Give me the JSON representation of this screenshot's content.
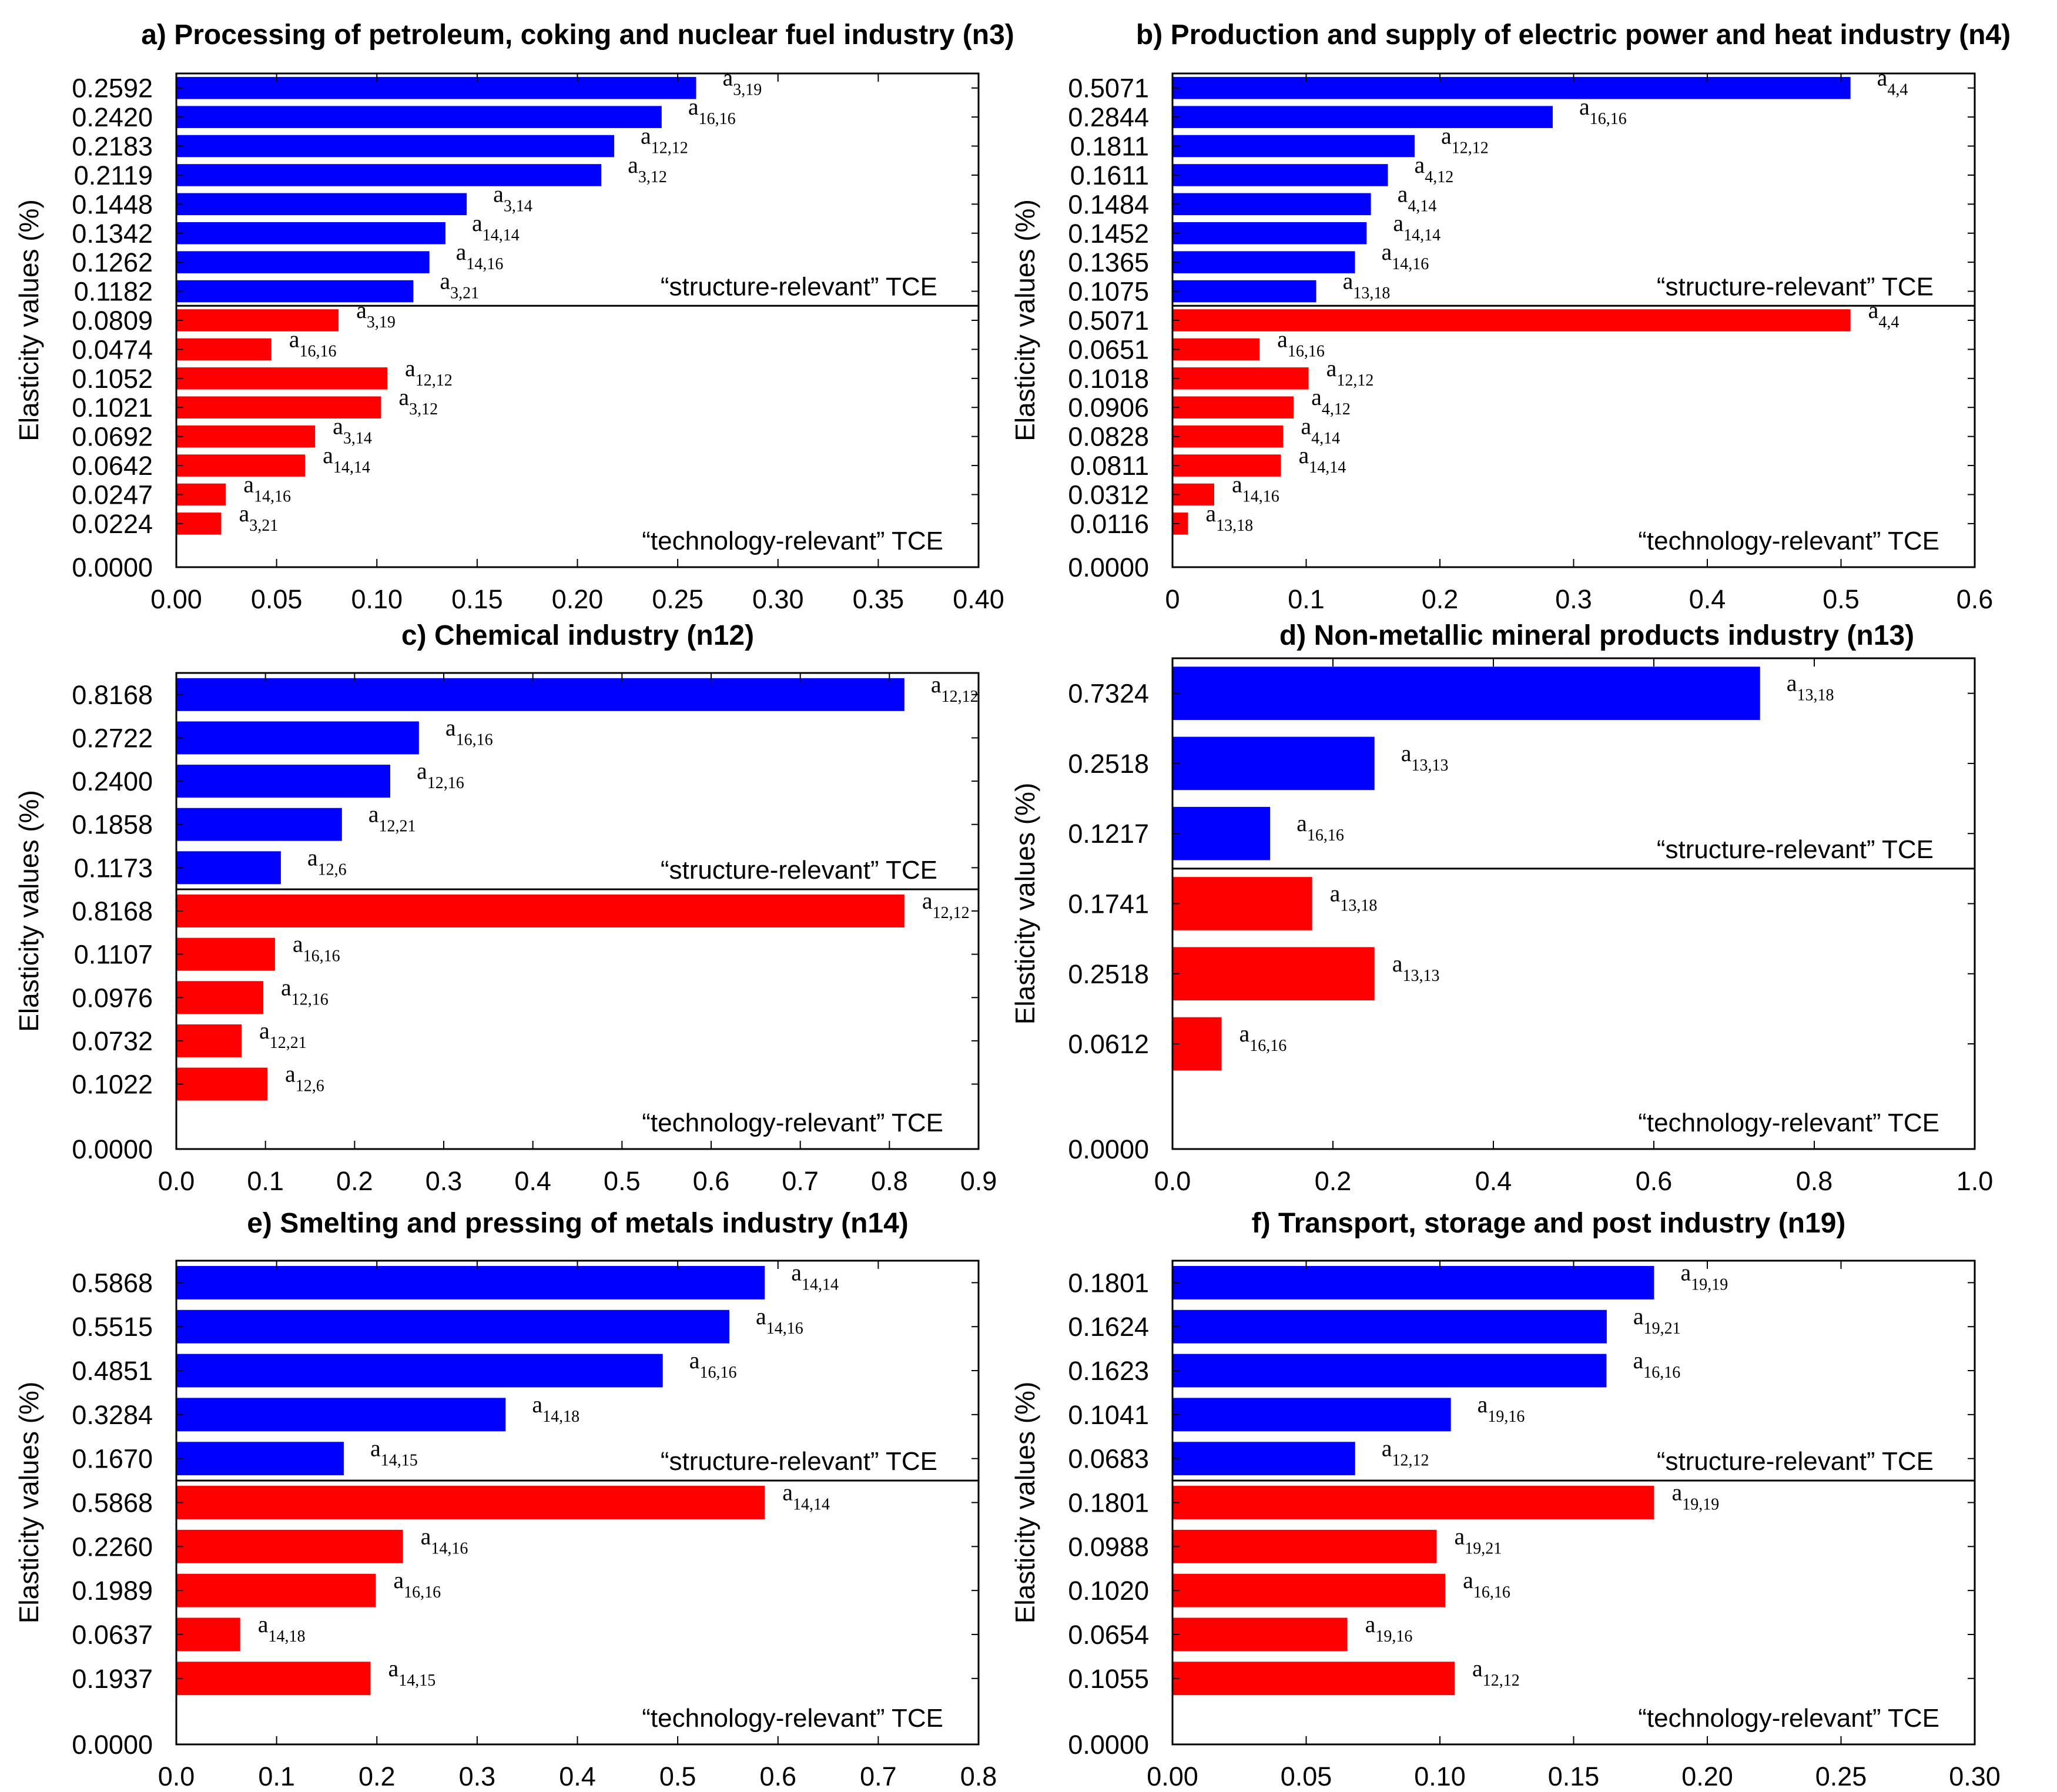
{
  "figure": {
    "ylabel": "Elasticity values (%)",
    "structure_label": "“structure-relevant” TCE",
    "technology_label": "“technology-relevant” TCE",
    "colors": {
      "structure": "#0000FF",
      "technology": "#FF0000",
      "axis": "#000000"
    }
  },
  "chart_data": [
    {
      "type": "bar",
      "orientation": "horizontal",
      "title": "a) Processing of petroleum, coking and nuclear fuel industry (n3)",
      "ylabel": "Elasticity values (%)",
      "xlim": [
        0,
        0.4
      ],
      "xticks": [
        "0.00",
        "0.05",
        "0.10",
        "0.15",
        "0.20",
        "0.25",
        "0.30",
        "0.35",
        "0.40"
      ],
      "structure": {
        "label": "“structure-relevant” TCE",
        "values": [
          0.2592,
          0.242,
          0.2183,
          0.2119,
          0.1448,
          0.1342,
          0.1262,
          0.1182
        ],
        "tick_labels": [
          "0.2592",
          "0.2420",
          "0.2183",
          "0.2119",
          "0.1448",
          "0.1342",
          "0.1262",
          "0.1182"
        ],
        "coef": [
          "3,19",
          "16,16",
          "12,12",
          "3,12",
          "3,14",
          "14,14",
          "14,16",
          "3,21"
        ]
      },
      "technology": {
        "label": "“technology-relevant” TCE",
        "values": [
          0.0809,
          0.0474,
          0.1052,
          0.1021,
          0.0692,
          0.0642,
          0.0247,
          0.0224
        ],
        "tick_labels": [
          "0.0809",
          "0.0474",
          "0.1052",
          "0.1021",
          "0.0692",
          "0.0642",
          "0.0247",
          "0.0224"
        ],
        "coef": [
          "3,19",
          "16,16",
          "12,12",
          "3,12",
          "3,14",
          "14,14",
          "14,16",
          "3,21"
        ]
      },
      "zero_label": "0.0000"
    },
    {
      "type": "bar",
      "orientation": "horizontal",
      "title": "b) Production and supply of electric power and heat industry (n4)",
      "ylabel": "Elasticity values (%)",
      "xlim": [
        0,
        0.6
      ],
      "xticks": [
        "0",
        "0.1",
        "0.2",
        "0.3",
        "0.4",
        "0.5",
        "0.6"
      ],
      "structure": {
        "label": "“structure-relevant” TCE",
        "values": [
          0.5071,
          0.2844,
          0.1811,
          0.1611,
          0.1484,
          0.1452,
          0.1365,
          0.1075
        ],
        "tick_labels": [
          "0.5071",
          "0.2844",
          "0.1811",
          "0.1611",
          "0.1484",
          "0.1452",
          "0.1365",
          "0.1075"
        ],
        "coef": [
          "4,4",
          "16,16",
          "12,12",
          "4,12",
          "4,14",
          "14,14",
          "14,16",
          "13,18"
        ]
      },
      "technology": {
        "label": "“technology-relevant” TCE",
        "values": [
          0.5071,
          0.0651,
          0.1018,
          0.0906,
          0.0828,
          0.0811,
          0.0312,
          0.0116
        ],
        "tick_labels": [
          "0.5071",
          "0.0651",
          "0.1018",
          "0.0906",
          "0.0828",
          "0.0811",
          "0.0312",
          "0.0116"
        ],
        "coef": [
          "4,4",
          "16,16",
          "12,12",
          "4,12",
          "4,14",
          "14,14",
          "14,16",
          "13,18"
        ]
      },
      "zero_label": "0.0000"
    },
    {
      "type": "bar",
      "orientation": "horizontal",
      "title": "c) Chemical industry (n12)",
      "ylabel": "Elasticity values (%)",
      "xlim": [
        0,
        0.9
      ],
      "xticks": [
        "0.0",
        "0.1",
        "0.2",
        "0.3",
        "0.4",
        "0.5",
        "0.6",
        "0.7",
        "0.8",
        "0.9"
      ],
      "structure": {
        "label": "“structure-relevant” TCE",
        "values": [
          0.8168,
          0.2722,
          0.24,
          0.1858,
          0.1173
        ],
        "tick_labels": [
          "0.8168",
          "0.2722",
          "0.2400",
          "0.1858",
          "0.1173"
        ],
        "coef": [
          "12,12",
          "16,16",
          "12,16",
          "12,21",
          "12,6"
        ]
      },
      "technology": {
        "label": "“technology-relevant” TCE",
        "values": [
          0.8168,
          0.1107,
          0.0976,
          0.0732,
          0.1022
        ],
        "tick_labels": [
          "0.8168",
          "0.1107",
          "0.0976",
          "0.0732",
          "0.1022"
        ],
        "coef": [
          "12,12",
          "16,16",
          "12,16",
          "12,21",
          "12,6"
        ]
      },
      "zero_label": "0.0000"
    },
    {
      "type": "bar",
      "orientation": "horizontal",
      "title": "d) Non-metallic mineral products industry (n13)",
      "ylabel": "Elasticity values (%)",
      "xlim": [
        0,
        1.0
      ],
      "xticks": [
        "0.0",
        "0.2",
        "0.4",
        "0.6",
        "0.8",
        "1.0"
      ],
      "structure": {
        "label": "“structure-relevant” TCE",
        "values": [
          0.7324,
          0.2518,
          0.1217
        ],
        "tick_labels": [
          "0.7324",
          "0.2518",
          "0.1217"
        ],
        "coef": [
          "13,18",
          "13,13",
          "16,16"
        ]
      },
      "technology": {
        "label": "“technology-relevant” TCE",
        "values": [
          0.1741,
          0.2518,
          0.0612
        ],
        "tick_labels": [
          "0.1741",
          "0.2518",
          "0.0612"
        ],
        "coef": [
          "13,18",
          "13,13",
          "16,16"
        ]
      },
      "zero_label": "0.0000"
    },
    {
      "type": "bar",
      "orientation": "horizontal",
      "title": "e) Smelting and pressing of metals industry (n14)",
      "ylabel": "Elasticity values (%)",
      "xlim": [
        0,
        0.8
      ],
      "xticks": [
        "0.0",
        "0.1",
        "0.2",
        "0.3",
        "0.4",
        "0.5",
        "0.6",
        "0.7",
        "0.8"
      ],
      "structure": {
        "label": "“structure-relevant” TCE",
        "values": [
          0.5868,
          0.5515,
          0.4851,
          0.3284,
          0.167
        ],
        "tick_labels": [
          "0.5868",
          "0.5515",
          "0.4851",
          "0.3284",
          "0.1670"
        ],
        "coef": [
          "14,14",
          "14,16",
          "16,16",
          "14,18",
          "14,15"
        ]
      },
      "technology": {
        "label": "“technology-relevant” TCE",
        "values": [
          0.5868,
          0.226,
          0.1989,
          0.0637,
          0.1937
        ],
        "tick_labels": [
          "0.5868",
          "0.2260",
          "0.1989",
          "0.0637",
          "0.1937"
        ],
        "coef": [
          "14,14",
          "14,16",
          "16,16",
          "14,18",
          "14,15"
        ]
      },
      "zero_label": "0.0000"
    },
    {
      "type": "bar",
      "orientation": "horizontal",
      "title": "f) Transport, storage and post industry (n19)",
      "ylabel": "Elasticity values (%)",
      "xlim": [
        0,
        0.3
      ],
      "xticks": [
        "0.00",
        "0.05",
        "0.10",
        "0.15",
        "0.20",
        "0.25",
        "0.30"
      ],
      "structure": {
        "label": "“structure-relevant” TCE",
        "values": [
          0.1801,
          0.1624,
          0.1623,
          0.1041,
          0.0683
        ],
        "tick_labels": [
          "0.1801",
          "0.1624",
          "0.1623",
          "0.1041",
          "0.0683"
        ],
        "coef": [
          "19,19",
          "19,21",
          "16,16",
          "19,16",
          "12,12"
        ]
      },
      "technology": {
        "label": "“technology-relevant” TCE",
        "values": [
          0.1801,
          0.0988,
          0.102,
          0.0654,
          0.1055
        ],
        "tick_labels": [
          "0.1801",
          "0.0988",
          "0.1020",
          "0.0654",
          "0.1055"
        ],
        "coef": [
          "19,19",
          "19,21",
          "16,16",
          "19,16",
          "12,12"
        ]
      },
      "zero_label": "0.0000"
    }
  ]
}
